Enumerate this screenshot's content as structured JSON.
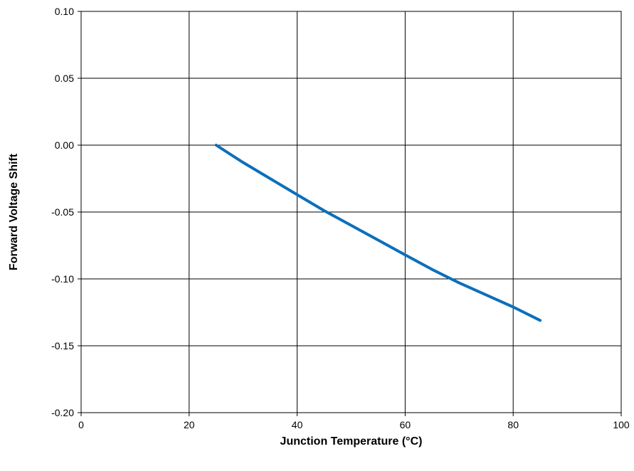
{
  "chart_data": {
    "type": "line",
    "title": "",
    "xlabel": "Junction Temperature (°C)",
    "ylabel": "Forward Voltage Shift",
    "xlim": [
      0,
      100
    ],
    "ylim": [
      -0.2,
      0.1
    ],
    "xticks": [
      0,
      20,
      40,
      60,
      80,
      100
    ],
    "xtick_labels": [
      "0",
      "20",
      "40",
      "60",
      "80",
      "100"
    ],
    "yticks": [
      -0.2,
      -0.15,
      -0.1,
      -0.05,
      0.0,
      0.05,
      0.1
    ],
    "ytick_labels": [
      "-0.20",
      "-0.15",
      "-0.10",
      "-0.05",
      "0.00",
      "0.05",
      "0.10"
    ],
    "grid": true,
    "legend": "none",
    "series": [
      {
        "color": "#0c6fbb",
        "x": [
          25,
          30,
          35,
          40,
          45,
          50,
          55,
          60,
          65,
          70,
          75,
          80,
          85
        ],
        "y": [
          0.0,
          -0.013,
          -0.025,
          -0.037,
          -0.049,
          -0.06,
          -0.071,
          -0.082,
          -0.093,
          -0.103,
          -0.112,
          -0.121,
          -0.131
        ]
      }
    ]
  }
}
